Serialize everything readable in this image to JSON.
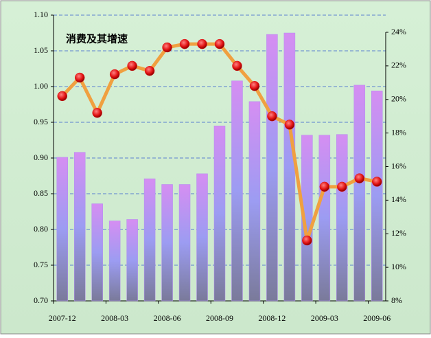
{
  "chart_data": {
    "type": "bar_line",
    "title": "消费及其增速",
    "categories": [
      "2007-12",
      null,
      null,
      "2008-03",
      null,
      null,
      "2008-06",
      null,
      null,
      "2008-09",
      null,
      null,
      "2008-12",
      null,
      null,
      "2009-03",
      null,
      null,
      "2009-06"
    ],
    "series": [
      {
        "type": "bar",
        "color": "#b38cf0",
        "values": [
          0.901,
          0.908,
          0.836,
          0.812,
          0.814,
          0.871,
          0.863,
          0.863,
          0.878,
          0.945,
          1.008,
          0.979,
          1.073,
          1.075,
          0.932,
          0.932,
          0.933,
          1.002,
          0.994
        ]
      },
      {
        "type": "line",
        "axis": "y2",
        "color": "#f0a040",
        "marker_color": "#e01010",
        "values": [
          20.2,
          21.3,
          19.2,
          21.5,
          22.0,
          21.7,
          23.1,
          23.3,
          23.3,
          23.3,
          22.0,
          20.8,
          19.0,
          18.5,
          11.6,
          14.8,
          14.8,
          15.3,
          15.1
        ]
      }
    ],
    "ylim": [
      0.7,
      1.1
    ],
    "yticks": [
      {
        "value": 0.7,
        "label": "0.70"
      },
      {
        "value": 0.75,
        "label": "0.75"
      },
      {
        "value": 0.8,
        "label": "0.80"
      },
      {
        "value": 0.85,
        "label": "0.85"
      },
      {
        "value": 0.9,
        "label": "0.90"
      },
      {
        "value": 0.95,
        "label": "0.95"
      },
      {
        "value": 1.0,
        "label": "1.00"
      },
      {
        "value": 1.05,
        "label": "1.05"
      },
      {
        "value": 1.1,
        "label": "1.10"
      }
    ],
    "y2lim": [
      8,
      24
    ],
    "y2ticks": [
      {
        "value": 8,
        "label": "8%"
      },
      {
        "value": 10,
        "label": "10%"
      },
      {
        "value": 12,
        "label": "12%"
      },
      {
        "value": 14,
        "label": "14%"
      },
      {
        "value": 16,
        "label": "16%"
      },
      {
        "value": 18,
        "label": "18%"
      },
      {
        "value": 20,
        "label": "20%"
      },
      {
        "value": 22,
        "label": "22%"
      },
      {
        "value": 24,
        "label": "24%"
      }
    ],
    "grid": true
  }
}
